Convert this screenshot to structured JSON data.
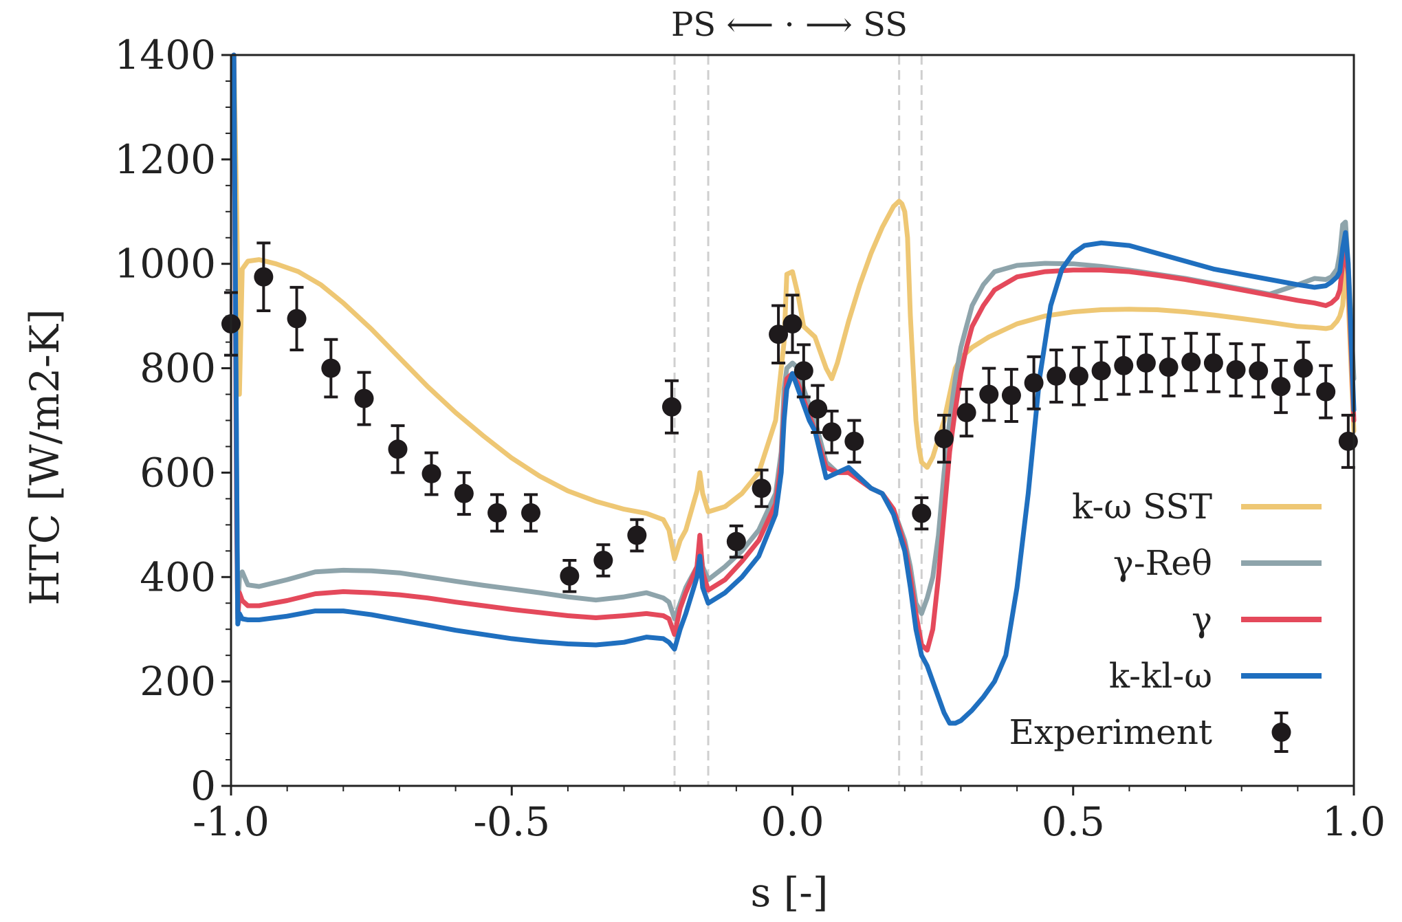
{
  "chart_data": {
    "type": "line",
    "title": "",
    "top_annotation": "PS ⟵ · ⟶ SS",
    "xlabel": "s [-]",
    "ylabel": "HTC [W/m2-K]",
    "xlim": [
      -1.0,
      1.0
    ],
    "ylim": [
      0,
      1400
    ],
    "xticks": [
      -1.0,
      -0.5,
      0.0,
      0.5,
      1.0
    ],
    "xtick_labels": [
      "-1.0",
      "-0.5",
      "0.0",
      "0.5",
      "1.0"
    ],
    "yticks": [
      0,
      200,
      400,
      600,
      800,
      1000,
      1200,
      1400
    ],
    "ytick_labels": [
      "0",
      "200",
      "400",
      "600",
      "800",
      "1000",
      "1200",
      "1400"
    ],
    "grid": false,
    "legend_position": "bottom-right",
    "reference_lines_x": [
      -0.21,
      -0.15,
      0.19,
      0.23
    ],
    "series": [
      {
        "name": "k-ω SST",
        "color": "#eec774",
        "x": [
          -0.995,
          -0.99,
          -0.985,
          -0.98,
          -0.97,
          -0.95,
          -0.92,
          -0.88,
          -0.84,
          -0.8,
          -0.75,
          -0.7,
          -0.65,
          -0.6,
          -0.55,
          -0.5,
          -0.45,
          -0.4,
          -0.35,
          -0.3,
          -0.26,
          -0.23,
          -0.22,
          -0.21,
          -0.2,
          -0.19,
          -0.17,
          -0.165,
          -0.16,
          -0.15,
          -0.12,
          -0.09,
          -0.06,
          -0.03,
          -0.02,
          -0.015,
          -0.01,
          0.0,
          0.01,
          0.02,
          0.04,
          0.06,
          0.07,
          0.08,
          0.1,
          0.12,
          0.14,
          0.16,
          0.18,
          0.19,
          0.195,
          0.2,
          0.205,
          0.21,
          0.215,
          0.22,
          0.225,
          0.23,
          0.24,
          0.25,
          0.27,
          0.29,
          0.3,
          0.32,
          0.35,
          0.4,
          0.45,
          0.5,
          0.55,
          0.6,
          0.65,
          0.7,
          0.75,
          0.8,
          0.85,
          0.9,
          0.93,
          0.95,
          0.96,
          0.97,
          0.975,
          0.98,
          0.985,
          0.99,
          1.0
        ],
        "values": [
          1400,
          1100,
          750,
          990,
          1005,
          1008,
          1000,
          985,
          960,
          925,
          875,
          820,
          765,
          715,
          670,
          628,
          593,
          565,
          545,
          530,
          522,
          510,
          490,
          435,
          470,
          490,
          565,
          600,
          560,
          525,
          535,
          560,
          600,
          700,
          800,
          850,
          980,
          985,
          940,
          880,
          860,
          800,
          780,
          810,
          890,
          960,
          1020,
          1070,
          1110,
          1120,
          1115,
          1100,
          1050,
          900,
          800,
          700,
          650,
          620,
          610,
          630,
          700,
          800,
          820,
          840,
          860,
          885,
          900,
          908,
          912,
          913,
          912,
          908,
          902,
          895,
          888,
          880,
          878,
          876,
          878,
          890,
          900,
          920,
          1000,
          930,
          680
        ]
      },
      {
        "name": "γ-Reθ",
        "color": "#8ea4ab",
        "x": [
          -0.995,
          -0.99,
          -0.988,
          -0.985,
          -0.98,
          -0.97,
          -0.95,
          -0.9,
          -0.85,
          -0.8,
          -0.75,
          -0.7,
          -0.65,
          -0.6,
          -0.55,
          -0.5,
          -0.45,
          -0.4,
          -0.35,
          -0.3,
          -0.26,
          -0.23,
          -0.22,
          -0.21,
          -0.2,
          -0.19,
          -0.17,
          -0.165,
          -0.16,
          -0.15,
          -0.12,
          -0.09,
          -0.06,
          -0.03,
          -0.02,
          -0.015,
          -0.01,
          0.0,
          0.01,
          0.02,
          0.03,
          0.04,
          0.06,
          0.08,
          0.1,
          0.12,
          0.14,
          0.16,
          0.18,
          0.2,
          0.21,
          0.22,
          0.23,
          0.24,
          0.25,
          0.26,
          0.27,
          0.28,
          0.29,
          0.3,
          0.31,
          0.32,
          0.34,
          0.36,
          0.4,
          0.45,
          0.5,
          0.55,
          0.6,
          0.65,
          0.7,
          0.75,
          0.8,
          0.85,
          0.9,
          0.93,
          0.95,
          0.96,
          0.97,
          0.975,
          0.98,
          0.985,
          0.99,
          1.0
        ],
        "values": [
          1400,
          600,
          330,
          400,
          410,
          385,
          382,
          395,
          410,
          413,
          412,
          408,
          400,
          392,
          384,
          377,
          370,
          362,
          356,
          362,
          370,
          360,
          352,
          320,
          350,
          380,
          420,
          470,
          420,
          395,
          420,
          450,
          490,
          560,
          640,
          760,
          800,
          810,
          800,
          760,
          730,
          700,
          620,
          600,
          605,
          590,
          570,
          560,
          530,
          470,
          420,
          350,
          330,
          360,
          400,
          480,
          600,
          700,
          780,
          840,
          880,
          920,
          960,
          985,
          997,
          1001,
          1000,
          995,
          988,
          980,
          972,
          962,
          952,
          942,
          960,
          972,
          970,
          975,
          990,
          1020,
          1075,
          1080,
          1000,
          780
        ]
      },
      {
        "name": "γ",
        "color": "#e4495b",
        "x": [
          -0.995,
          -0.99,
          -0.988,
          -0.985,
          -0.98,
          -0.97,
          -0.95,
          -0.9,
          -0.85,
          -0.8,
          -0.75,
          -0.7,
          -0.65,
          -0.6,
          -0.55,
          -0.5,
          -0.45,
          -0.4,
          -0.35,
          -0.3,
          -0.26,
          -0.23,
          -0.22,
          -0.21,
          -0.2,
          -0.19,
          -0.17,
          -0.165,
          -0.16,
          -0.15,
          -0.12,
          -0.09,
          -0.06,
          -0.03,
          -0.02,
          -0.015,
          -0.01,
          0.0,
          0.01,
          0.02,
          0.03,
          0.04,
          0.06,
          0.08,
          0.1,
          0.12,
          0.14,
          0.16,
          0.18,
          0.2,
          0.21,
          0.22,
          0.23,
          0.24,
          0.25,
          0.26,
          0.27,
          0.28,
          0.29,
          0.3,
          0.31,
          0.32,
          0.34,
          0.36,
          0.4,
          0.45,
          0.5,
          0.55,
          0.6,
          0.65,
          0.7,
          0.75,
          0.8,
          0.85,
          0.9,
          0.93,
          0.95,
          0.96,
          0.97,
          0.975,
          0.98,
          0.985,
          0.99,
          1.0
        ],
        "values": [
          1400,
          500,
          320,
          370,
          355,
          345,
          345,
          355,
          368,
          372,
          370,
          366,
          360,
          352,
          345,
          338,
          332,
          326,
          322,
          326,
          330,
          326,
          320,
          290,
          340,
          370,
          420,
          480,
          410,
          375,
          395,
          430,
          470,
          540,
          620,
          720,
          780,
          790,
          770,
          740,
          710,
          680,
          610,
          600,
          600,
          585,
          570,
          560,
          530,
          460,
          400,
          330,
          270,
          260,
          300,
          400,
          520,
          640,
          720,
          790,
          840,
          880,
          920,
          950,
          975,
          985,
          988,
          988,
          985,
          978,
          970,
          960,
          950,
          940,
          930,
          925,
          920,
          925,
          935,
          950,
          1000,
          1020,
          980,
          700
        ]
      },
      {
        "name": "k-kl-ω",
        "color": "#1f6fbf",
        "x": [
          -0.995,
          -0.99,
          -0.988,
          -0.985,
          -0.98,
          -0.97,
          -0.95,
          -0.9,
          -0.85,
          -0.8,
          -0.75,
          -0.7,
          -0.65,
          -0.6,
          -0.55,
          -0.5,
          -0.45,
          -0.4,
          -0.35,
          -0.3,
          -0.26,
          -0.23,
          -0.22,
          -0.21,
          -0.2,
          -0.19,
          -0.17,
          -0.165,
          -0.16,
          -0.15,
          -0.12,
          -0.09,
          -0.06,
          -0.03,
          -0.02,
          -0.015,
          -0.01,
          0.0,
          0.01,
          0.02,
          0.03,
          0.04,
          0.06,
          0.08,
          0.1,
          0.12,
          0.14,
          0.16,
          0.18,
          0.2,
          0.21,
          0.22,
          0.23,
          0.24,
          0.25,
          0.26,
          0.27,
          0.28,
          0.29,
          0.3,
          0.32,
          0.34,
          0.36,
          0.38,
          0.4,
          0.42,
          0.44,
          0.46,
          0.48,
          0.5,
          0.52,
          0.55,
          0.6,
          0.65,
          0.7,
          0.75,
          0.8,
          0.85,
          0.9,
          0.93,
          0.95,
          0.96,
          0.97,
          0.975,
          0.98,
          0.985,
          0.99,
          1.0
        ],
        "values": [
          1400,
          600,
          310,
          330,
          320,
          318,
          318,
          325,
          335,
          335,
          328,
          318,
          308,
          298,
          290,
          282,
          276,
          272,
          270,
          275,
          285,
          282,
          275,
          262,
          300,
          330,
          400,
          440,
          380,
          350,
          370,
          400,
          440,
          520,
          600,
          700,
          760,
          790,
          760,
          730,
          700,
          680,
          590,
          600,
          610,
          590,
          570,
          560,
          520,
          450,
          380,
          300,
          250,
          230,
          200,
          170,
          140,
          120,
          120,
          125,
          145,
          170,
          200,
          250,
          380,
          560,
          780,
          920,
          990,
          1020,
          1035,
          1040,
          1035,
          1020,
          1005,
          990,
          980,
          970,
          960,
          955,
          958,
          965,
          975,
          985,
          1030,
          1060,
          1000,
          720
        ]
      }
    ],
    "experiment": {
      "name": "Experiment",
      "color": "#1e1a1c",
      "x": [
        -1.0,
        -0.942,
        -0.883,
        -0.822,
        -0.763,
        -0.703,
        -0.643,
        -0.585,
        -0.526,
        -0.466,
        -0.397,
        -0.337,
        -0.277,
        -0.215,
        -0.1,
        -0.055,
        -0.025,
        0.0,
        0.02,
        0.045,
        0.07,
        0.11,
        0.23,
        0.27,
        0.31,
        0.35,
        0.39,
        0.43,
        0.47,
        0.51,
        0.55,
        0.59,
        0.63,
        0.67,
        0.71,
        0.75,
        0.79,
        0.83,
        0.87,
        0.91,
        0.95,
        0.99
      ],
      "values": [
        885,
        975,
        895,
        800,
        742,
        645,
        598,
        560,
        523,
        523,
        402,
        432,
        480,
        726,
        468,
        570,
        865,
        885,
        795,
        722,
        678,
        660,
        522,
        665,
        715,
        750,
        748,
        772,
        785,
        785,
        795,
        805,
        810,
        802,
        812,
        810,
        797,
        795,
        765,
        800,
        755,
        660
      ],
      "errors": [
        60,
        65,
        60,
        55,
        50,
        45,
        40,
        40,
        35,
        35,
        30,
        30,
        30,
        50,
        30,
        35,
        55,
        55,
        50,
        45,
        40,
        40,
        30,
        45,
        45,
        50,
        50,
        50,
        50,
        55,
        55,
        55,
        55,
        55,
        55,
        55,
        50,
        50,
        50,
        50,
        50,
        50
      ]
    }
  }
}
